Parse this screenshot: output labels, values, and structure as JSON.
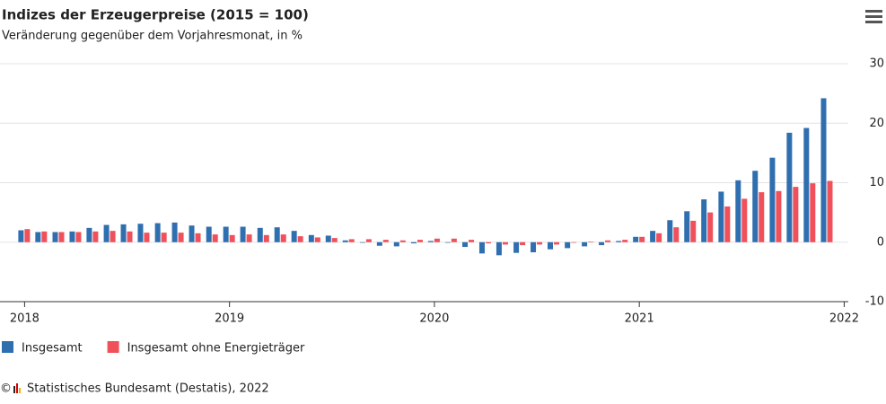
{
  "chart_data": {
    "type": "bar",
    "title": "Indizes der Erzeugerpreise (2015 = 100)",
    "subtitle": "Veränderung gegenüber dem Vorjahresmonat, in %",
    "x": [
      2018,
      2018.083,
      2018.167,
      2018.25,
      2018.333,
      2018.417,
      2018.5,
      2018.583,
      2018.667,
      2018.75,
      2018.833,
      2018.917,
      2019,
      2019.083,
      2019.167,
      2019.25,
      2019.333,
      2019.417,
      2019.5,
      2019.583,
      2019.667,
      2019.75,
      2019.833,
      2019.917,
      2020,
      2020.083,
      2020.167,
      2020.25,
      2020.333,
      2020.417,
      2020.5,
      2020.583,
      2020.667,
      2020.75,
      2020.833,
      2020.917,
      2021,
      2021.083,
      2021.167,
      2021.25,
      2021.333,
      2021.417,
      2021.5,
      2021.583,
      2021.667,
      2021.75,
      2021.833,
      2021.917
    ],
    "series": [
      {
        "name": "Insgesamt",
        "color": "#2f6fb0",
        "values": [
          2.0,
          1.7,
          1.7,
          1.8,
          2.4,
          2.9,
          3.0,
          3.1,
          3.2,
          3.3,
          2.8,
          2.6,
          2.6,
          2.6,
          2.4,
          2.5,
          1.9,
          1.2,
          1.1,
          0.3,
          -0.1,
          -0.6,
          -0.7,
          -0.2,
          0.2,
          -0.1,
          -0.8,
          -1.9,
          -2.2,
          -1.8,
          -1.7,
          -1.2,
          -1.0,
          -0.7,
          -0.5,
          0.2,
          0.9,
          1.9,
          3.7,
          5.2,
          7.2,
          8.5,
          10.4,
          12.0,
          14.2,
          18.4,
          19.2,
          24.2
        ]
      },
      {
        "name": "Insgesamt ohne Energieträger",
        "color": "#f0505a",
        "values": [
          2.2,
          1.8,
          1.7,
          1.7,
          1.8,
          1.9,
          1.8,
          1.6,
          1.6,
          1.6,
          1.5,
          1.3,
          1.2,
          1.3,
          1.2,
          1.3,
          1.0,
          0.8,
          0.7,
          0.5,
          0.5,
          0.4,
          0.3,
          0.4,
          0.6,
          0.6,
          0.4,
          -0.2,
          -0.4,
          -0.5,
          -0.4,
          -0.4,
          -0.1,
          0.1,
          0.3,
          0.4,
          0.9,
          1.5,
          2.5,
          3.6,
          5.0,
          6.0,
          7.3,
          8.4,
          8.6,
          9.3,
          9.9,
          10.3
        ]
      }
    ],
    "xlim": [
      2017.88,
      2022.02
    ],
    "xticks": [
      2018,
      2019,
      2020,
      2021,
      2022
    ],
    "ylim": [
      -10,
      30
    ],
    "yticks": [
      -10,
      0,
      10,
      20,
      30
    ],
    "grid": true,
    "copyright": "©",
    "source": "Statistisches Bundesamt (Destatis), 2022"
  }
}
